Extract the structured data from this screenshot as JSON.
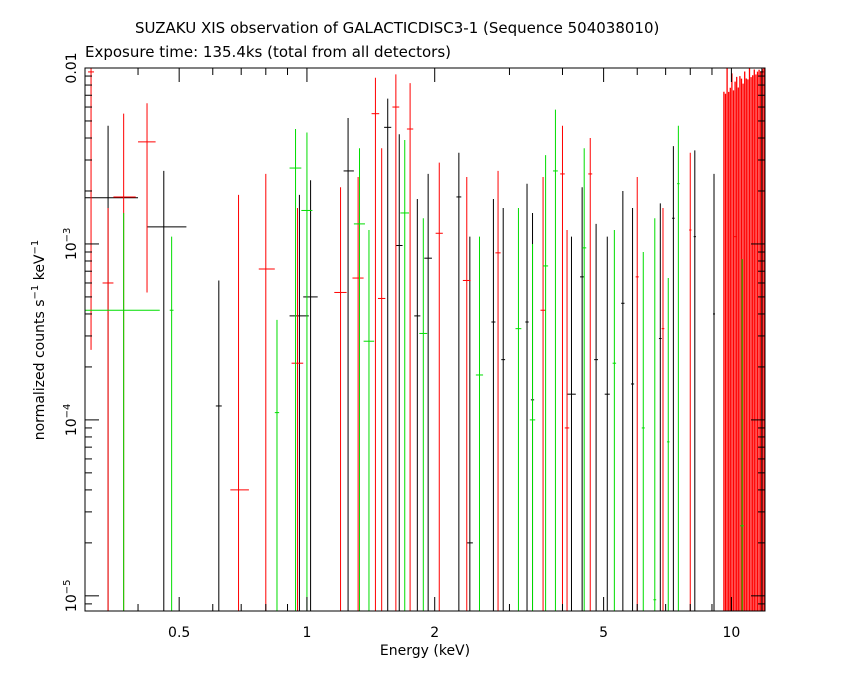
{
  "chart_data": {
    "type": "scatter",
    "title": "SUZAKU XIS observation of GALACTICDISC3-1 (Sequence 504038010)",
    "subtitle": "Exposure time: 135.4ks (total from all detectors)",
    "xlabel": "Energy (keV)",
    "ylabel_parts": [
      "normalized counts s",
      "−1",
      " keV",
      "−1"
    ],
    "x_scale": "log",
    "y_scale": "log",
    "xlim": [
      0.3,
      12
    ],
    "ylim": [
      8.2e-06,
      0.01
    ],
    "x_ticks": [
      {
        "value": 0.5,
        "label": "0.5"
      },
      {
        "value": 1,
        "label": "1"
      },
      {
        "value": 2,
        "label": "2"
      },
      {
        "value": 5,
        "label": "5"
      },
      {
        "value": 10,
        "label": "10"
      }
    ],
    "y_ticks": [
      {
        "value": 1e-05,
        "base": "10",
        "exp": "−5"
      },
      {
        "value": 0.0001,
        "base": "10",
        "exp": "−4"
      },
      {
        "value": 0.001,
        "base": "10",
        "exp": "−3"
      },
      {
        "value": 0.01,
        "base": "0.01",
        "exp": ""
      }
    ],
    "series": [
      {
        "color": "#000000",
        "points": [
          {
            "x": 0.34,
            "xlo": 0.3,
            "xhi": 0.4,
            "y": 0.00183,
            "ylo": 8.2e-06,
            "yhi": 0.0047
          },
          {
            "x": 0.46,
            "xlo": 0.42,
            "xhi": 0.52,
            "y": 0.00125,
            "ylo": 8.2e-06,
            "yhi": 0.0026
          },
          {
            "x": 0.62,
            "xlo": 0.61,
            "xhi": 0.63,
            "y": 0.00012,
            "ylo": 8.2e-06,
            "yhi": 0.00062
          },
          {
            "x": 0.96,
            "xlo": 0.91,
            "xhi": 1.01,
            "y": 0.00039,
            "ylo": 8.2e-06,
            "yhi": 0.0019
          },
          {
            "x": 1.02,
            "xlo": 0.98,
            "xhi": 1.06,
            "y": 0.0005,
            "ylo": 8.2e-06,
            "yhi": 0.0023
          },
          {
            "x": 1.25,
            "xlo": 1.22,
            "xhi": 1.29,
            "y": 0.0026,
            "ylo": 8.2e-06,
            "yhi": 0.0052
          },
          {
            "x": 1.55,
            "xlo": 1.52,
            "xhi": 1.58,
            "y": 0.0046,
            "ylo": 8.2e-06,
            "yhi": 0.0067
          },
          {
            "x": 1.65,
            "xlo": 1.62,
            "xhi": 1.68,
            "y": 0.00098,
            "ylo": 8.2e-06,
            "yhi": 0.0042
          },
          {
            "x": 1.82,
            "xlo": 1.79,
            "xhi": 1.85,
            "y": 0.00039,
            "ylo": 8.2e-06,
            "yhi": 0.0018
          },
          {
            "x": 1.93,
            "xlo": 1.89,
            "xhi": 1.97,
            "y": 0.00083,
            "ylo": 8.2e-06,
            "yhi": 0.0025
          },
          {
            "x": 2.28,
            "xlo": 2.25,
            "xhi": 2.31,
            "y": 0.00185,
            "ylo": 8.2e-06,
            "yhi": 0.0033
          },
          {
            "x": 2.42,
            "xlo": 2.38,
            "xhi": 2.46,
            "y": 2e-05,
            "ylo": 8.2e-06,
            "yhi": 0.0011
          },
          {
            "x": 2.75,
            "xlo": 2.72,
            "xhi": 2.78,
            "y": 0.00036,
            "ylo": 8.2e-06,
            "yhi": 0.0018
          },
          {
            "x": 2.9,
            "xlo": 2.87,
            "xhi": 2.93,
            "y": 0.00022,
            "ylo": 8.2e-06,
            "yhi": 0.0016
          },
          {
            "x": 3.3,
            "xlo": 3.27,
            "xhi": 3.33,
            "y": 0.00036,
            "ylo": 8.2e-06,
            "yhi": 0.0022
          },
          {
            "x": 3.4,
            "xlo": 3.37,
            "xhi": 3.43,
            "y": 0.00013,
            "ylo": 8.2e-06,
            "yhi": 0.0015
          },
          {
            "x": 4.2,
            "xlo": 4.1,
            "xhi": 4.3,
            "y": 0.00014,
            "ylo": 8.2e-06,
            "yhi": 0.0011
          },
          {
            "x": 4.45,
            "xlo": 4.4,
            "xhi": 4.5,
            "y": 0.00065,
            "ylo": 8.2e-06,
            "yhi": 0.0021
          },
          {
            "x": 4.8,
            "xlo": 4.75,
            "xhi": 4.85,
            "y": 0.00022,
            "ylo": 8.2e-06,
            "yhi": 0.0013
          },
          {
            "x": 5.1,
            "xlo": 5.03,
            "xhi": 5.17,
            "y": 0.00014,
            "ylo": 8.2e-06,
            "yhi": 0.0011
          },
          {
            "x": 5.55,
            "xlo": 5.5,
            "xhi": 5.6,
            "y": 0.00046,
            "ylo": 8.2e-06,
            "yhi": 0.002
          },
          {
            "x": 5.85,
            "xlo": 5.8,
            "xhi": 5.9,
            "y": 0.00016,
            "ylo": 8.2e-06,
            "yhi": 0.0016
          },
          {
            "x": 6.8,
            "xlo": 6.75,
            "xhi": 6.85,
            "y": 0.00029,
            "ylo": 8.2e-06,
            "yhi": 0.0017
          },
          {
            "x": 7.3,
            "xlo": 7.25,
            "xhi": 7.35,
            "y": 0.0014,
            "ylo": 8.2e-06,
            "yhi": 0.0036
          },
          {
            "x": 8.2,
            "xlo": 8.15,
            "xhi": 8.25,
            "y": 0.0011,
            "ylo": 8.2e-06,
            "yhi": 0.0034
          },
          {
            "x": 9.1,
            "xlo": 9.05,
            "xhi": 9.15,
            "y": 0.0004,
            "ylo": 8.2e-06,
            "yhi": 0.0025
          },
          {
            "x": 11.8,
            "xlo": 11.7,
            "xhi": 11.9,
            "y": 0.0095,
            "ylo": 8.2e-06,
            "yhi": 0.01
          }
        ]
      },
      {
        "color": "#ff0000",
        "points": [
          {
            "x": 0.31,
            "xlo": 0.305,
            "xhi": 0.315,
            "y": 0.0095,
            "ylo": 0.00025,
            "yhi": 0.01
          },
          {
            "x": 0.34,
            "xlo": 0.33,
            "xhi": 0.35,
            "y": 0.0006,
            "ylo": 8.2e-06,
            "yhi": 0.0016
          },
          {
            "x": 0.37,
            "xlo": 0.35,
            "xhi": 0.395,
            "y": 0.00185,
            "ylo": 8.2e-06,
            "yhi": 0.0055
          },
          {
            "x": 0.42,
            "xlo": 0.4,
            "xhi": 0.44,
            "y": 0.0038,
            "ylo": 0.00053,
            "yhi": 0.0063
          },
          {
            "x": 0.69,
            "xlo": 0.66,
            "xhi": 0.73,
            "y": 4e-05,
            "ylo": 8.2e-06,
            "yhi": 0.0019
          },
          {
            "x": 0.8,
            "xlo": 0.77,
            "xhi": 0.84,
            "y": 0.00072,
            "ylo": 8.2e-06,
            "yhi": 0.0025
          },
          {
            "x": 0.95,
            "xlo": 0.92,
            "xhi": 0.98,
            "y": 0.00021,
            "ylo": 8.2e-06,
            "yhi": 0.0016
          },
          {
            "x": 1.2,
            "xlo": 1.16,
            "xhi": 1.24,
            "y": 0.00053,
            "ylo": 8.2e-06,
            "yhi": 0.0021
          },
          {
            "x": 1.32,
            "xlo": 1.28,
            "xhi": 1.36,
            "y": 0.00064,
            "ylo": 8.2e-06,
            "yhi": 0.0024
          },
          {
            "x": 1.45,
            "xlo": 1.42,
            "xhi": 1.48,
            "y": 0.0055,
            "ylo": 8.2e-06,
            "yhi": 0.0088
          },
          {
            "x": 1.5,
            "xlo": 1.47,
            "xhi": 1.53,
            "y": 0.00049,
            "ylo": 8.2e-06,
            "yhi": 0.0035
          },
          {
            "x": 1.62,
            "xlo": 1.59,
            "xhi": 1.65,
            "y": 0.006,
            "ylo": 8.2e-06,
            "yhi": 0.0092
          },
          {
            "x": 1.75,
            "xlo": 1.72,
            "xhi": 1.78,
            "y": 0.0045,
            "ylo": 8.2e-06,
            "yhi": 0.0082
          },
          {
            "x": 2.05,
            "xlo": 2.01,
            "xhi": 2.09,
            "y": 0.00115,
            "ylo": 8.2e-06,
            "yhi": 0.0029
          },
          {
            "x": 2.38,
            "xlo": 2.33,
            "xhi": 2.43,
            "y": 0.00062,
            "ylo": 8.2e-06,
            "yhi": 0.0024
          },
          {
            "x": 2.82,
            "xlo": 2.78,
            "xhi": 2.86,
            "y": 0.00089,
            "ylo": 8.2e-06,
            "yhi": 0.0026
          },
          {
            "x": 3.6,
            "xlo": 3.55,
            "xhi": 3.65,
            "y": 0.00042,
            "ylo": 8.2e-06,
            "yhi": 0.0024
          },
          {
            "x": 4.0,
            "xlo": 3.95,
            "xhi": 4.05,
            "y": 0.0025,
            "ylo": 8.2e-06,
            "yhi": 0.0047
          },
          {
            "x": 4.1,
            "xlo": 4.05,
            "xhi": 4.15,
            "y": 9e-05,
            "ylo": 8.2e-06,
            "yhi": 0.0012
          },
          {
            "x": 4.65,
            "xlo": 4.6,
            "xhi": 4.7,
            "y": 0.0025,
            "ylo": 8.2e-06,
            "yhi": 0.004
          },
          {
            "x": 6.0,
            "xlo": 5.95,
            "xhi": 6.05,
            "y": 0.00065,
            "ylo": 8.2e-06,
            "yhi": 0.0024
          },
          {
            "x": 6.9,
            "xlo": 6.85,
            "xhi": 6.95,
            "y": 0.00033,
            "ylo": 8.2e-06,
            "yhi": 0.0016
          },
          {
            "x": 8.0,
            "xlo": 7.95,
            "xhi": 8.05,
            "y": 0.0012,
            "ylo": 8.2e-06,
            "yhi": 0.0033
          },
          {
            "x": 10.2,
            "xlo": 10.1,
            "xhi": 10.3,
            "y": 0.0011,
            "ylo": 8.2e-06,
            "yhi": 0.0049
          }
        ]
      },
      {
        "color": "#00dd00",
        "points": [
          {
            "x": 0.37,
            "xlo": 0.3,
            "xhi": 0.45,
            "y": 0.00042,
            "ylo": 8.2e-06,
            "yhi": 0.0015
          },
          {
            "x": 0.48,
            "xlo": 0.475,
            "xhi": 0.485,
            "y": 0.00042,
            "ylo": 8.2e-06,
            "yhi": 0.0011
          },
          {
            "x": 0.85,
            "xlo": 0.84,
            "xhi": 0.86,
            "y": 0.00011,
            "ylo": 8.2e-06,
            "yhi": 0.00037
          },
          {
            "x": 0.94,
            "xlo": 0.91,
            "xhi": 0.97,
            "y": 0.0027,
            "ylo": 8.2e-06,
            "yhi": 0.0045
          },
          {
            "x": 1.0,
            "xlo": 0.97,
            "xhi": 1.03,
            "y": 0.00155,
            "ylo": 8.2e-06,
            "yhi": 0.0043
          },
          {
            "x": 1.33,
            "xlo": 1.29,
            "xhi": 1.37,
            "y": 0.0013,
            "ylo": 8.2e-06,
            "yhi": 0.0035
          },
          {
            "x": 1.4,
            "xlo": 1.36,
            "xhi": 1.44,
            "y": 0.00028,
            "ylo": 8.2e-06,
            "yhi": 0.0012
          },
          {
            "x": 1.7,
            "xlo": 1.66,
            "xhi": 1.74,
            "y": 0.0015,
            "ylo": 8.2e-06,
            "yhi": 0.0039
          },
          {
            "x": 1.88,
            "xlo": 1.84,
            "xhi": 1.92,
            "y": 0.00031,
            "ylo": 8.2e-06,
            "yhi": 0.0014
          },
          {
            "x": 2.55,
            "xlo": 2.5,
            "xhi": 2.6,
            "y": 0.00018,
            "ylo": 8.2e-06,
            "yhi": 0.0011
          },
          {
            "x": 3.15,
            "xlo": 3.1,
            "xhi": 3.2,
            "y": 0.00033,
            "ylo": 8.2e-06,
            "yhi": 0.0016
          },
          {
            "x": 3.4,
            "xlo": 3.35,
            "xhi": 3.45,
            "y": 0.0001,
            "ylo": 8.2e-06,
            "yhi": 0.001
          },
          {
            "x": 3.65,
            "xlo": 3.6,
            "xhi": 3.7,
            "y": 0.00075,
            "ylo": 8.2e-06,
            "yhi": 0.0032
          },
          {
            "x": 3.85,
            "xlo": 3.8,
            "xhi": 3.9,
            "y": 0.0026,
            "ylo": 8.2e-06,
            "yhi": 0.0058
          },
          {
            "x": 4.5,
            "xlo": 4.45,
            "xhi": 4.55,
            "y": 0.00095,
            "ylo": 8.2e-06,
            "yhi": 0.0035
          },
          {
            "x": 5.3,
            "xlo": 5.25,
            "xhi": 5.35,
            "y": 0.00021,
            "ylo": 8.2e-06,
            "yhi": 0.0012
          },
          {
            "x": 6.2,
            "xlo": 6.15,
            "xhi": 6.25,
            "y": 9e-05,
            "ylo": 8.2e-06,
            "yhi": 0.0009
          },
          {
            "x": 6.6,
            "xlo": 6.55,
            "xhi": 6.65,
            "y": 9.5e-06,
            "ylo": 8.2e-06,
            "yhi": 0.0014
          },
          {
            "x": 7.1,
            "xlo": 7.05,
            "xhi": 7.15,
            "y": 7.5e-05,
            "ylo": 8.2e-06,
            "yhi": 0.00064
          },
          {
            "x": 7.5,
            "xlo": 7.45,
            "xhi": 7.55,
            "y": 0.0022,
            "ylo": 8.2e-06,
            "yhi": 0.0047
          },
          {
            "x": 10.6,
            "xlo": 10.5,
            "xhi": 10.7,
            "y": 2.5e-05,
            "ylo": 8.2e-06,
            "yhi": 0.00082
          }
        ]
      }
    ]
  }
}
